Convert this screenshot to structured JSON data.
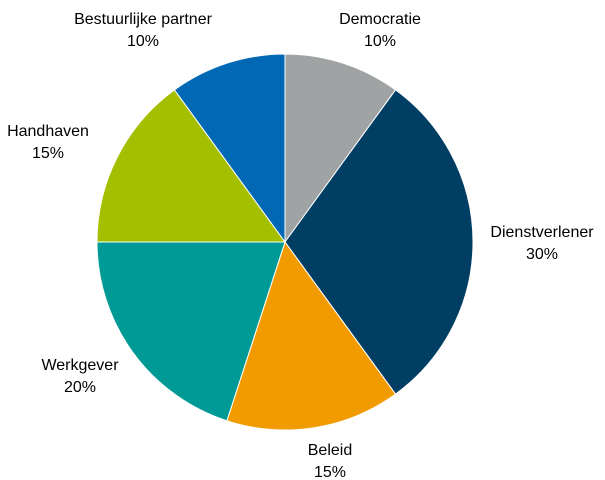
{
  "chart_data": {
    "type": "pie",
    "start_angle_deg": 0,
    "direction": "clockwise",
    "slices": [
      {
        "name": "Democratie",
        "value": 10,
        "value_label": "10%",
        "color": "#a0a3a4"
      },
      {
        "name": "Dienstverlener",
        "value": 30,
        "value_label": "30%",
        "color": "#003e63"
      },
      {
        "name": "Beleid",
        "value": 15,
        "value_label": "15%",
        "color": "#f29b00"
      },
      {
        "name": "Werkgever",
        "value": 20,
        "value_label": "20%",
        "color": "#009a96"
      },
      {
        "name": "Handhaven",
        "value": 15,
        "value_label": "15%",
        "color": "#a3bf00"
      },
      {
        "name": "Bestuurlijke partner",
        "value": 10,
        "value_label": "10%",
        "color": "#0068b4"
      }
    ]
  }
}
